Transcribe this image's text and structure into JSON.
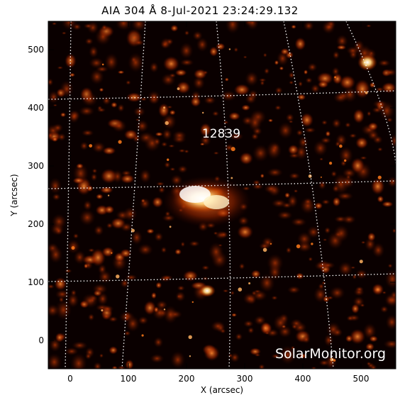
{
  "title": "AIA 304 Å   8-Jul-2021 23:24:29.132",
  "axes": {
    "x_label": "X (arcsec)",
    "y_label": "Y (arcsec)",
    "x_ticks": [
      "0",
      "100",
      "200",
      "300",
      "400",
      "500"
    ],
    "y_ticks": [
      "0",
      "100",
      "200",
      "300",
      "400",
      "500"
    ],
    "x_range": [
      -38,
      562
    ],
    "y_range": [
      -50,
      550
    ]
  },
  "annotations": {
    "region_number": "12839",
    "watermark": "SolarMonitor.org"
  },
  "colors": {
    "background": "#000000",
    "colormap": [
      "#000000",
      "#5a0a00",
      "#b43200",
      "#ff7a1a",
      "#ffe0a0",
      "#ffffff"
    ],
    "grid": "#ffffff"
  }
}
